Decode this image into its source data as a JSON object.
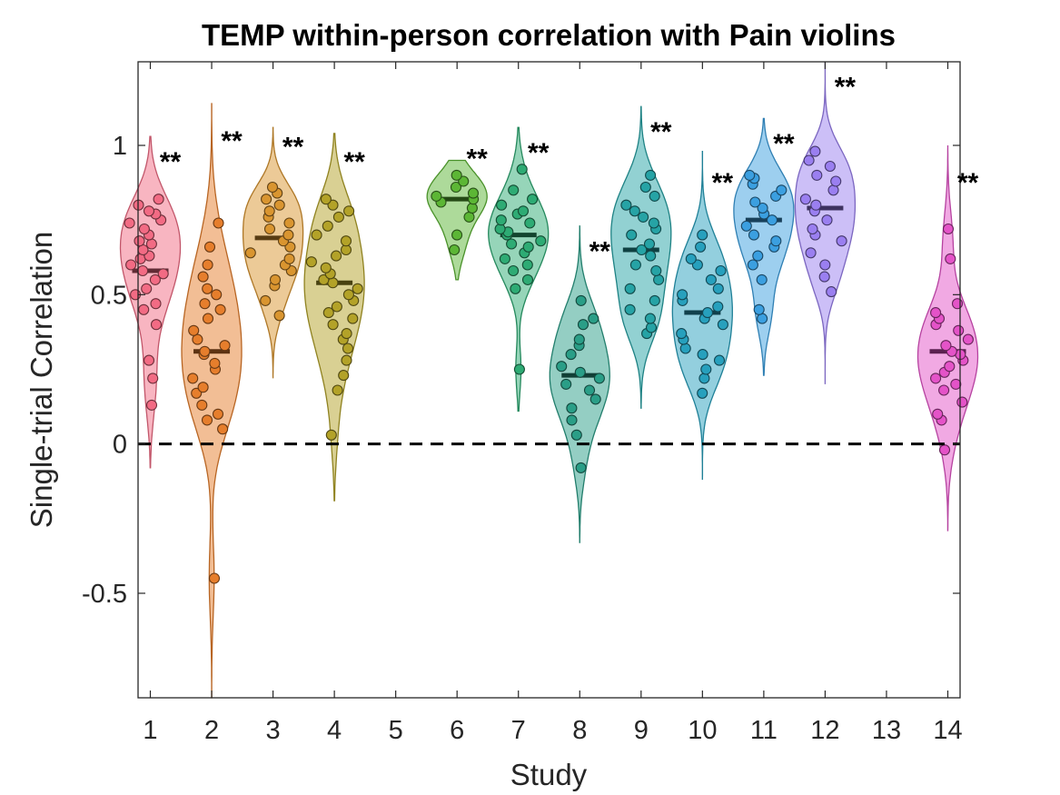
{
  "chart_data": {
    "type": "violin",
    "title": "TEMP within-person correlation with Pain violins",
    "xlabel": "Study",
    "ylabel": "Single-trial Correlation",
    "xlim": [
      0.8,
      14.2
    ],
    "ylim": [
      -0.85,
      1.28
    ],
    "y_ticks": [
      -0.5,
      0,
      0.5,
      1
    ],
    "y_tick_labels": [
      "-0.5",
      "0",
      "0.5",
      "1"
    ],
    "x_ticks": [
      1,
      2,
      3,
      4,
      5,
      6,
      7,
      8,
      9,
      10,
      11,
      12,
      13,
      14
    ],
    "x_tick_labels": [
      "1",
      "2",
      "3",
      "4",
      "5",
      "6",
      "7",
      "8",
      "9",
      "10",
      "11",
      "12",
      "13",
      "14"
    ],
    "reference_line": {
      "y": 0,
      "style": "dashed"
    },
    "significance_marker": "**",
    "grid": false,
    "studies": [
      {
        "study": 1,
        "color": "#f26b84",
        "median": 0.58,
        "range": [
          -0.08,
          1.03
        ],
        "sig_y": 0.97,
        "points": [
          0.13,
          0.22,
          0.28,
          0.4,
          0.45,
          0.47,
          0.5,
          0.52,
          0.55,
          0.57,
          0.58,
          0.6,
          0.62,
          0.63,
          0.65,
          0.67,
          0.68,
          0.7,
          0.72,
          0.74,
          0.75,
          0.77,
          0.78,
          0.8,
          0.82
        ]
      },
      {
        "study": 2,
        "color": "#e67e2c",
        "median": 0.31,
        "range": [
          -0.85,
          1.14
        ],
        "sig_y": 1.04,
        "points": [
          -0.45,
          0.05,
          0.08,
          0.1,
          0.13,
          0.17,
          0.19,
          0.22,
          0.25,
          0.27,
          0.3,
          0.31,
          0.33,
          0.35,
          0.38,
          0.42,
          0.45,
          0.47,
          0.5,
          0.52,
          0.56,
          0.6,
          0.66,
          0.74
        ]
      },
      {
        "study": 3,
        "color": "#d99530",
        "median": 0.69,
        "range": [
          0.22,
          1.06
        ],
        "sig_y": 1.02,
        "points": [
          0.43,
          0.48,
          0.53,
          0.55,
          0.58,
          0.6,
          0.62,
          0.64,
          0.66,
          0.68,
          0.7,
          0.72,
          0.74,
          0.76,
          0.78,
          0.8,
          0.82,
          0.84,
          0.86
        ]
      },
      {
        "study": 4,
        "color": "#b3a228",
        "median": 0.54,
        "range": [
          -0.19,
          1.04
        ],
        "sig_y": 0.97,
        "points": [
          0.03,
          0.18,
          0.23,
          0.28,
          0.32,
          0.35,
          0.37,
          0.4,
          0.42,
          0.44,
          0.46,
          0.48,
          0.5,
          0.52,
          0.54,
          0.55,
          0.57,
          0.59,
          0.61,
          0.63,
          0.65,
          0.68,
          0.7,
          0.73,
          0.76,
          0.78,
          0.8,
          0.82
        ]
      },
      {
        "study": 6,
        "color": "#5cb635",
        "median": 0.82,
        "range": [
          0.55,
          0.95
        ],
        "sig_y": 0.98,
        "points": [
          0.65,
          0.7,
          0.76,
          0.79,
          0.81,
          0.82,
          0.83,
          0.84,
          0.86,
          0.88,
          0.9
        ]
      },
      {
        "study": 7,
        "color": "#2eab74",
        "median": 0.7,
        "range": [
          0.11,
          1.06
        ],
        "sig_y": 1.0,
        "points": [
          0.25,
          0.52,
          0.55,
          0.58,
          0.6,
          0.62,
          0.64,
          0.66,
          0.67,
          0.68,
          0.7,
          0.71,
          0.72,
          0.74,
          0.75,
          0.77,
          0.78,
          0.8,
          0.82,
          0.85,
          0.92
        ]
      },
      {
        "study": 8,
        "color": "#2a9e87",
        "median": 0.23,
        "range": [
          -0.33,
          0.73
        ],
        "sig_y": 0.67,
        "points": [
          -0.08,
          0.03,
          0.08,
          0.12,
          0.15,
          0.18,
          0.2,
          0.22,
          0.24,
          0.26,
          0.3,
          0.33,
          0.35,
          0.4,
          0.42,
          0.48
        ]
      },
      {
        "study": 9,
        "color": "#26a3a5",
        "median": 0.65,
        "range": [
          0.12,
          1.13
        ],
        "sig_y": 1.07,
        "points": [
          0.37,
          0.39,
          0.42,
          0.45,
          0.48,
          0.52,
          0.55,
          0.58,
          0.6,
          0.63,
          0.65,
          0.67,
          0.7,
          0.72,
          0.74,
          0.76,
          0.78,
          0.8,
          0.83,
          0.86,
          0.9
        ]
      },
      {
        "study": 10,
        "color": "#27a0bd",
        "median": 0.44,
        "range": [
          -0.12,
          0.98
        ],
        "sig_y": 0.9,
        "points": [
          0.17,
          0.22,
          0.25,
          0.28,
          0.3,
          0.32,
          0.35,
          0.37,
          0.4,
          0.42,
          0.44,
          0.46,
          0.48,
          0.5,
          0.52,
          0.55,
          0.58,
          0.6,
          0.62,
          0.66,
          0.7
        ]
      },
      {
        "study": 11,
        "color": "#3b9fe0",
        "median": 0.75,
        "range": [
          0.23,
          1.09
        ],
        "sig_y": 1.03,
        "points": [
          0.42,
          0.45,
          0.55,
          0.6,
          0.63,
          0.66,
          0.68,
          0.7,
          0.73,
          0.75,
          0.77,
          0.79,
          0.81,
          0.83,
          0.85,
          0.87,
          0.89,
          0.9
        ]
      },
      {
        "study": 12,
        "color": "#9a7ff0",
        "median": 0.79,
        "range": [
          0.2,
          1.28
        ],
        "sig_y": 1.22,
        "points": [
          0.51,
          0.56,
          0.6,
          0.64,
          0.68,
          0.7,
          0.72,
          0.75,
          0.78,
          0.8,
          0.82,
          0.85,
          0.88,
          0.9,
          0.93,
          0.95,
          0.98
        ]
      },
      {
        "study": 14,
        "color": "#e453c8",
        "median": 0.31,
        "range": [
          -0.29,
          1.0
        ],
        "sig_y": 0.9,
        "points": [
          -0.02,
          0.08,
          0.1,
          0.14,
          0.18,
          0.2,
          0.22,
          0.24,
          0.26,
          0.28,
          0.3,
          0.31,
          0.33,
          0.35,
          0.38,
          0.4,
          0.42,
          0.44,
          0.47,
          0.62,
          0.72
        ]
      }
    ]
  }
}
